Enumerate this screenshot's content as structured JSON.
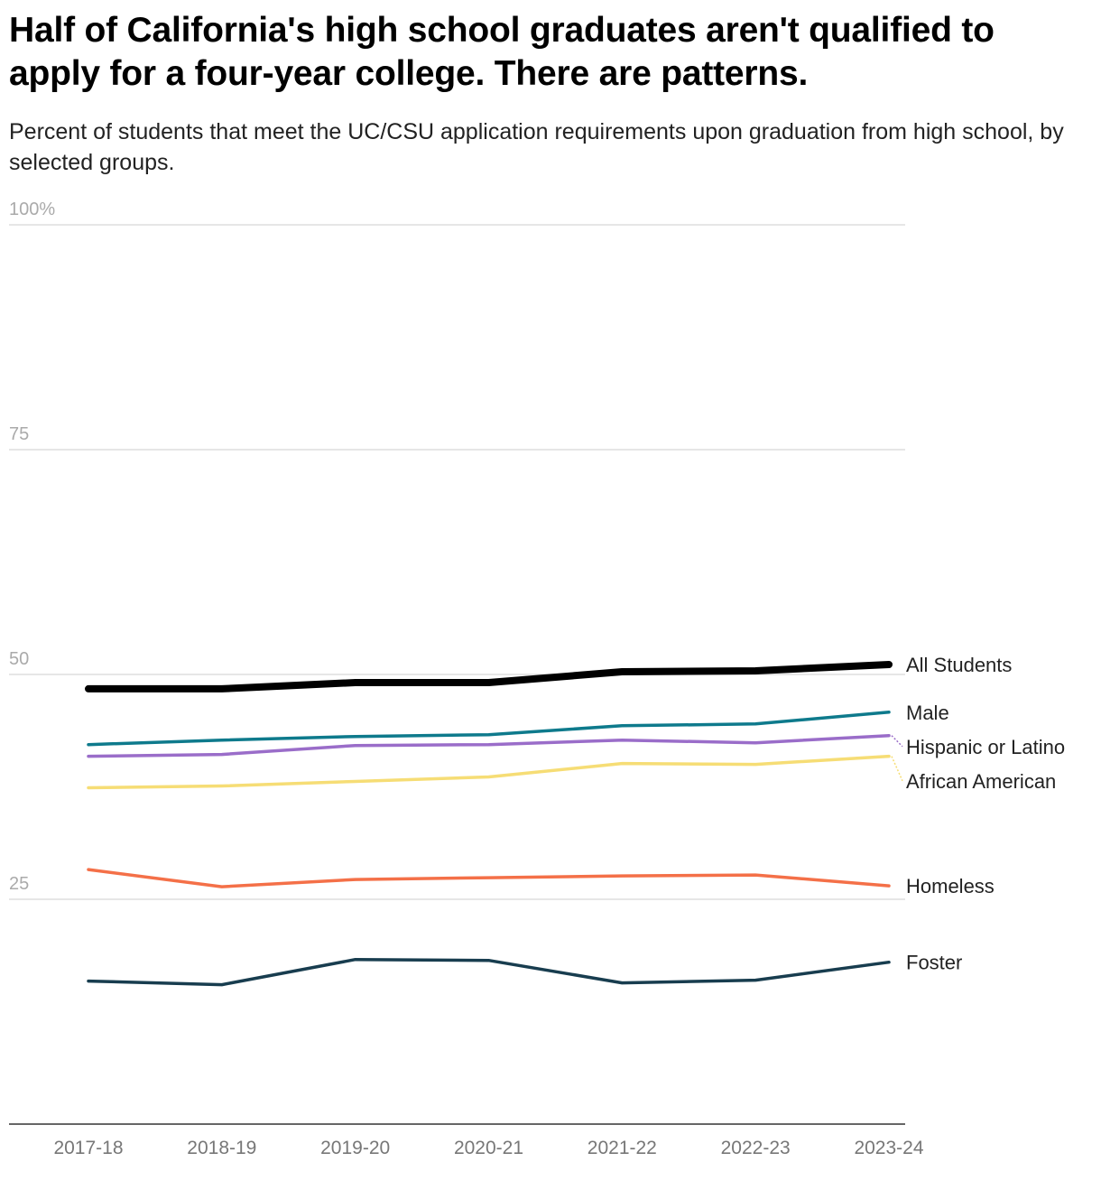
{
  "title": "Half of California's high school graduates aren't qualified to apply for a four-year college. There are patterns.",
  "subtitle": "Percent of students that meet the UC/CSU application requirements upon graduation from high school, by selected groups.",
  "chart_data": {
    "type": "line",
    "categories": [
      "2017-18",
      "2018-19",
      "2019-20",
      "2020-21",
      "2021-22",
      "2022-23",
      "2023-24"
    ],
    "ylim": [
      0,
      100
    ],
    "yticks": [
      {
        "value": 100,
        "label": "100%"
      },
      {
        "value": 75,
        "label": "75"
      },
      {
        "value": 50,
        "label": "50"
      },
      {
        "value": 25,
        "label": "25"
      }
    ],
    "grid": true,
    "legend": "direct labels at right end of lines",
    "series": [
      {
        "name": "All Students",
        "color": "#000000",
        "values": [
          48.4,
          48.4,
          49.1,
          49.1,
          50.3,
          50.4,
          51.1
        ]
      },
      {
        "name": "Male",
        "color": "#0e7a8c",
        "values": [
          42.2,
          42.7,
          43.1,
          43.3,
          44.3,
          44.5,
          45.8
        ]
      },
      {
        "name": "Hispanic or Latino",
        "color": "#9a6dc9",
        "values": [
          40.9,
          41.1,
          42.1,
          42.2,
          42.7,
          42.4,
          43.2
        ]
      },
      {
        "name": "African American",
        "color": "#f6dd75",
        "values": [
          37.4,
          37.6,
          38.1,
          38.6,
          40.1,
          40.0,
          40.9
        ]
      },
      {
        "name": "Homeless",
        "color": "#f47048",
        "values": [
          28.3,
          26.4,
          27.2,
          27.4,
          27.6,
          27.7,
          26.5
        ]
      },
      {
        "name": "Foster",
        "color": "#183d4f",
        "values": [
          15.9,
          15.5,
          18.3,
          18.2,
          15.7,
          16.0,
          18.0
        ]
      }
    ]
  }
}
